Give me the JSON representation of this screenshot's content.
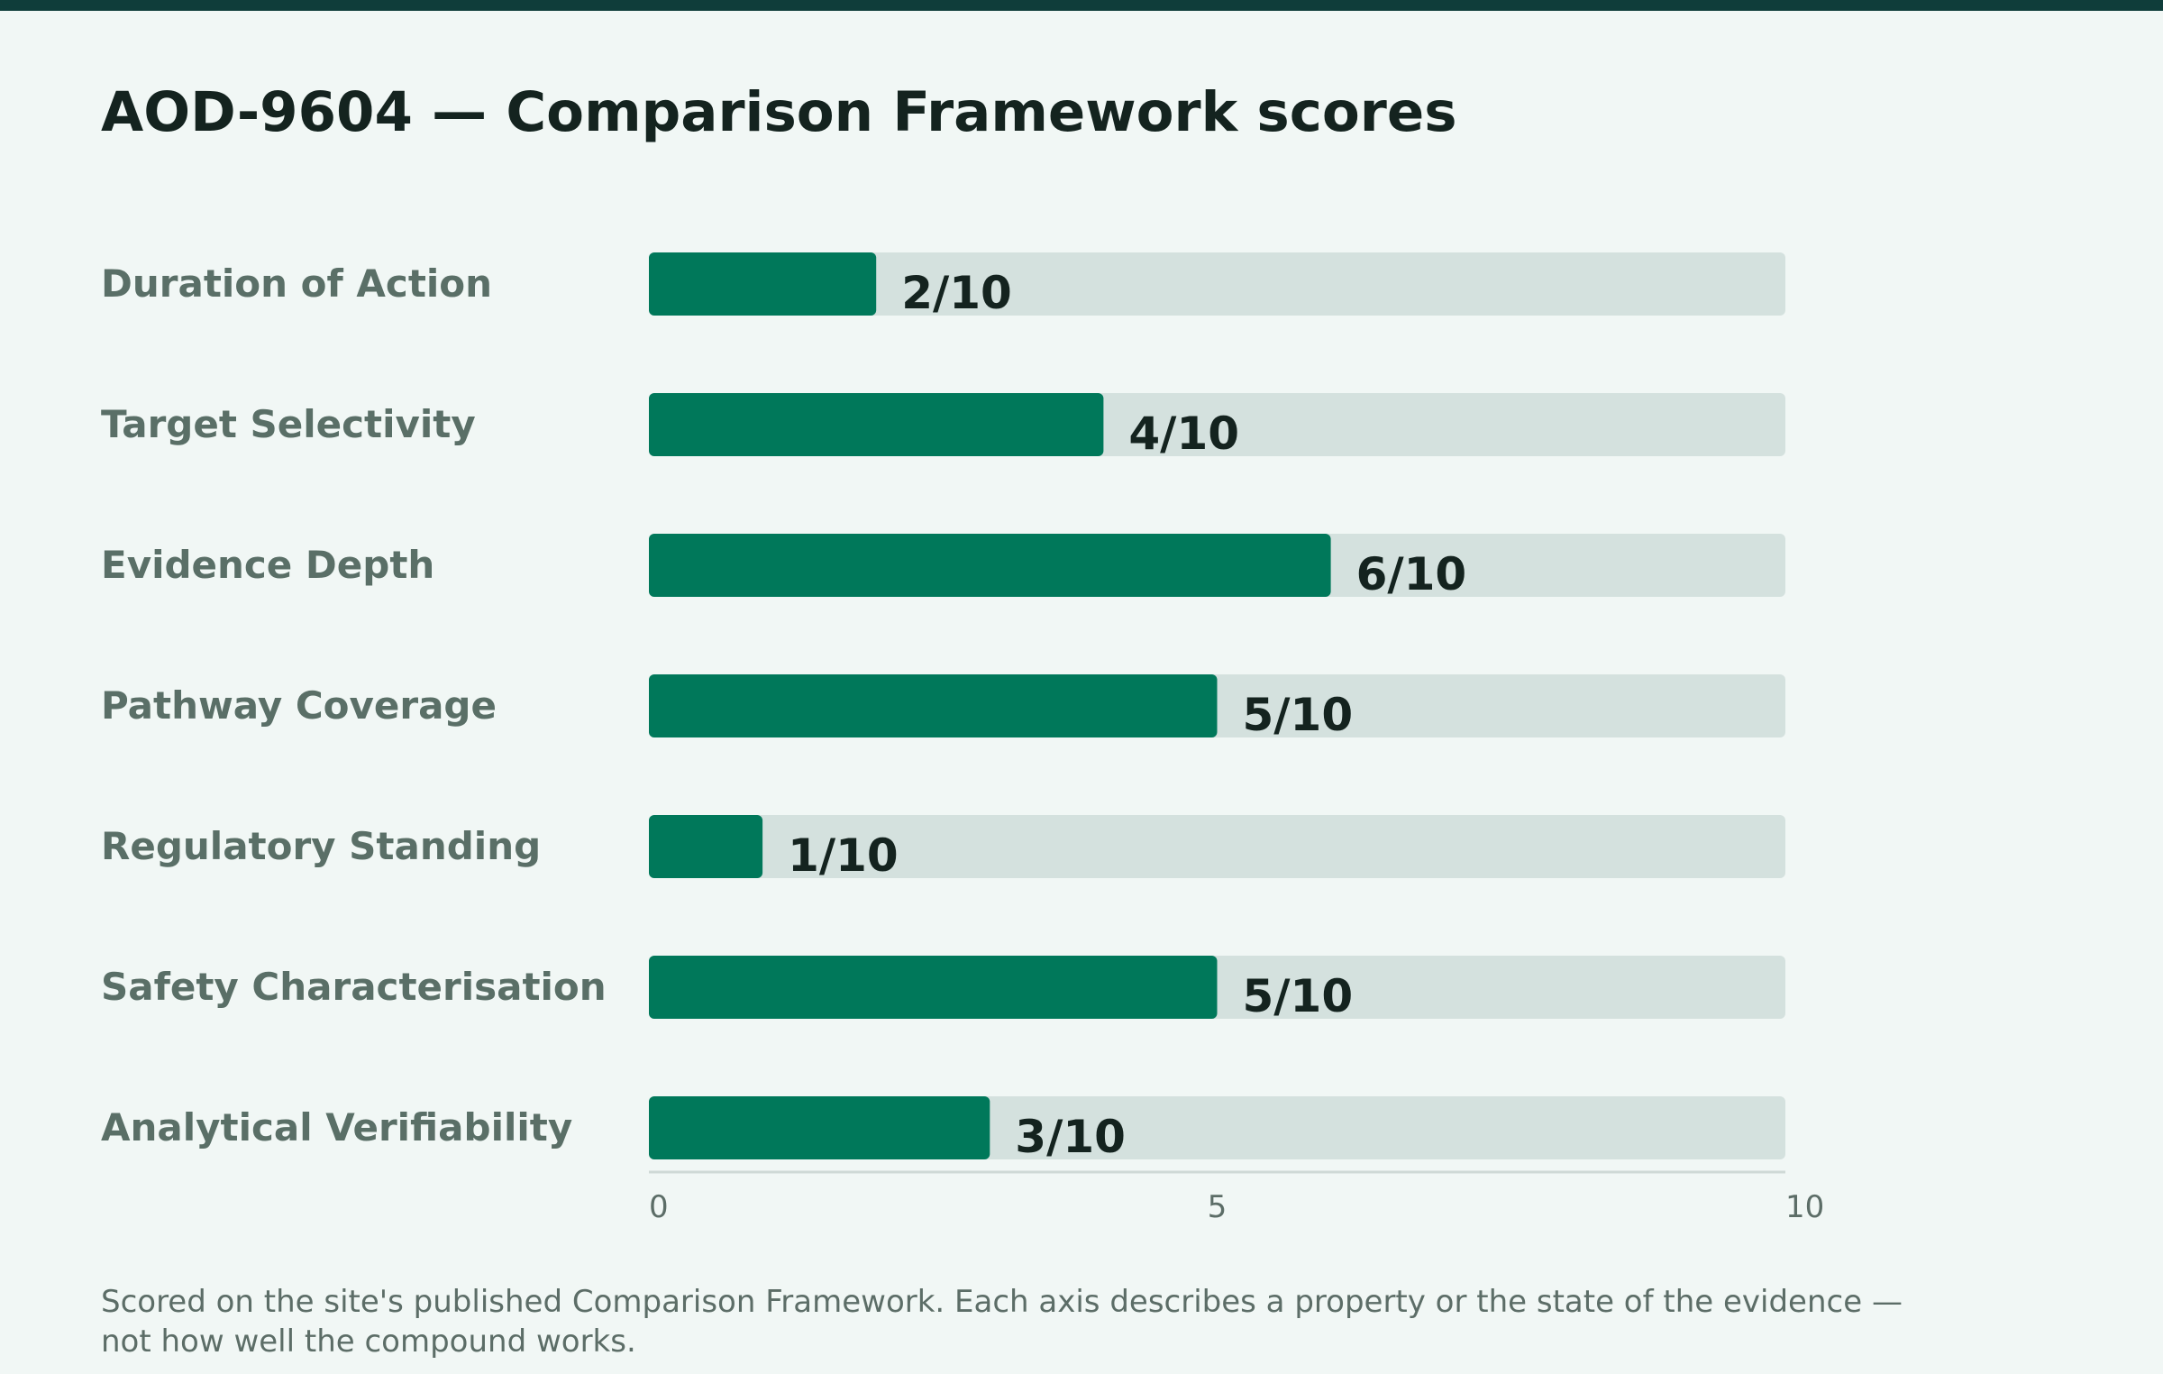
{
  "page": {
    "title": "AOD-9604 — Comparison Framework scores",
    "footnote": "Scored on the site's published Comparison Framework. Each axis describes a property or the state of the evidence — not how well the compound works."
  },
  "colors": {
    "bar_fill": "#00785a",
    "track": "#d4e1de",
    "category_text": "#5a6f67",
    "value_text": "#14231f",
    "axis_text": "#5c6d67",
    "top_band": "#0f3d3a"
  },
  "chart_data": {
    "type": "bar",
    "orientation": "horizontal",
    "title": "AOD-9604 — Comparison Framework scores",
    "categories": [
      "Duration of Action",
      "Target Selectivity",
      "Evidence Depth",
      "Pathway Coverage",
      "Regulatory Standing",
      "Safety Characterisation",
      "Analytical Verifiability"
    ],
    "values": [
      2,
      4,
      6,
      5,
      1,
      5,
      3
    ],
    "value_labels": [
      "2/10",
      "4/10",
      "6/10",
      "5/10",
      "1/10",
      "5/10",
      "3/10"
    ],
    "xlim": [
      0,
      10
    ],
    "x_ticks": [
      0,
      5,
      10
    ],
    "x_tick_labels": [
      "0",
      "5",
      "10"
    ],
    "xlabel": "",
    "ylabel": "",
    "grid": false,
    "legend": "none"
  }
}
